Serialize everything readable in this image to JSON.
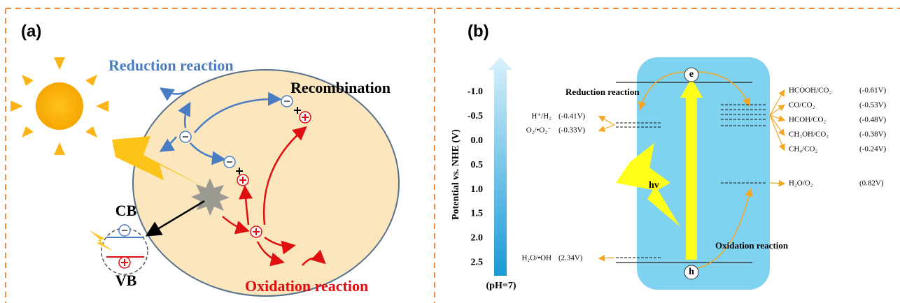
{
  "panel_a": {
    "label": "(a)",
    "reduction": "Reduction reaction",
    "recombination": "Recombination",
    "cb": "CB",
    "vb": "VB",
    "oxidation": "Oxidation reaction"
  },
  "panel_b": {
    "label": "(b)",
    "axis_title": "Potential vs. NHE (V)",
    "axis_ticks": [
      "-1.0",
      "-0.5",
      "0.0",
      "0.5",
      "1.0",
      "1.5",
      "2.0",
      "2.5"
    ],
    "ph": "(pH=7)",
    "reduction": "Reduction reaction",
    "oxidation": "Oxidation reaction",
    "hv": "hv",
    "electron": "e",
    "hole": "h",
    "left_couples": [
      {
        "couple": "H⁺/H₂",
        "potential": "(-0.41V)"
      },
      {
        "couple": "O₂/•O₂⁻",
        "potential": "(-0.33V)"
      },
      {
        "couple": "H₂O/•OH",
        "potential": "(2.34V)"
      }
    ],
    "right_couples": [
      {
        "couple": "HCOOH/CO₂",
        "potential": "(-0.61V)"
      },
      {
        "couple": "CO/CO₂",
        "potential": "(-0.53V)"
      },
      {
        "couple": "HCOH/CO₂",
        "potential": "(-0.48V)"
      },
      {
        "couple": "CH₃OH/CO₂",
        "potential": "(-0.38V)"
      },
      {
        "couple": "CH₄/CO₂",
        "potential": "(-0.24V)"
      },
      {
        "couple": "H₂O/O₂",
        "potential": "(0.82V)"
      }
    ]
  }
}
